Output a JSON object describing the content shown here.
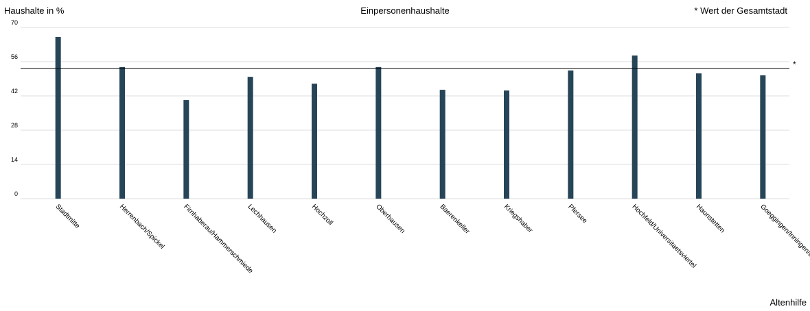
{
  "chart_data": {
    "type": "bar",
    "title": "Einpersonenhaushalte",
    "y_label": "Haushalte in %",
    "note": "* Wert der Gesamtstadt",
    "footer": "Altenhilfe",
    "categories": [
      "Stadtmitte",
      "Herrenbach/Spickel",
      "Firnhaberau/Hammerschmiede",
      "Lechhausen",
      "Hochzoll",
      "Oberhausen",
      "Baerenkeller",
      "Kriegshaber",
      "Pfersee",
      "Hochfeld/Universitaetsviertel",
      "Haunstetten",
      "Goeggingen/Inningen/B"
    ],
    "values": [
      66.1,
      53.8,
      40.3,
      49.8,
      47.0,
      53.8,
      44.5,
      44.2,
      52.4,
      58.5,
      51.2,
      50.4
    ],
    "color": "#274559",
    "reference": 53.2,
    "reference_label": "*",
    "ylim": [
      0,
      70
    ],
    "yticks": [
      0,
      14,
      28,
      42,
      56,
      70
    ],
    "grid": true
  }
}
